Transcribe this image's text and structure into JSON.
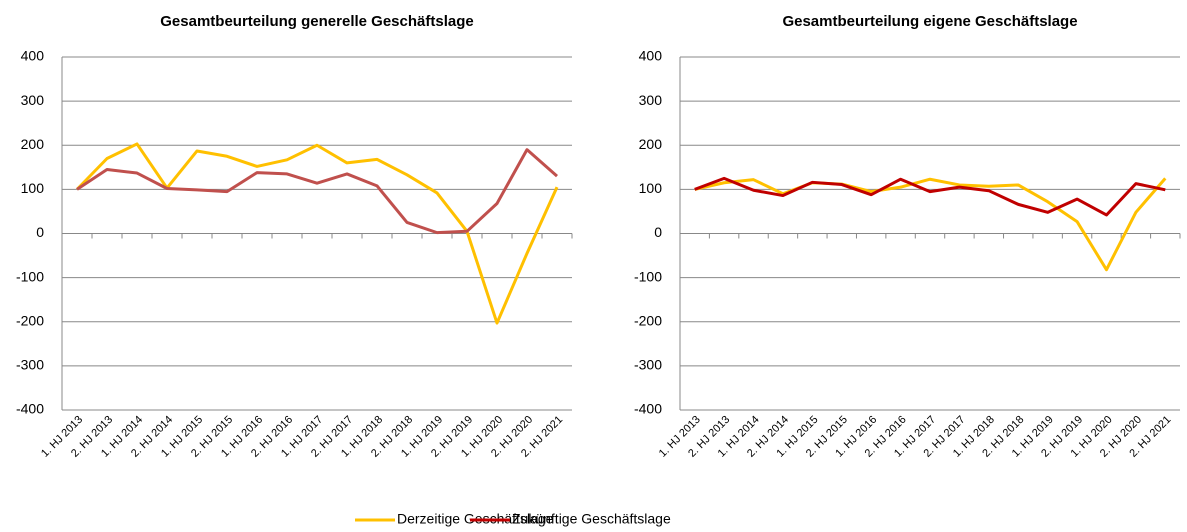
{
  "chart_data": [
    {
      "type": "line",
      "title": "Gesamtbeurteilung generelle Geschäftslage",
      "categories": [
        "1. HJ 2013",
        "2. HJ 2013",
        "1. HJ 2014",
        "2. HJ 2014",
        "1. HJ 2015",
        "2. HJ 2015",
        "1. HJ 2016",
        "2. HJ 2016",
        "1. HJ 2017",
        "2. HJ 2017",
        "1. HJ 2018",
        "2. HJ 2018",
        "1. HJ 2019",
        "2. HJ 2019",
        "1. HJ 2020",
        "2. HJ 2020",
        "2. HJ 2021"
      ],
      "series": [
        {
          "color": "#ffc000",
          "values": [
            100,
            170,
            203,
            103,
            187,
            175,
            152,
            167,
            200,
            160,
            168,
            133,
            92,
            5,
            -203,
            -45,
            105
          ]
        },
        {
          "color": "#c0504d",
          "values": [
            100,
            145,
            137,
            102,
            99,
            95,
            138,
            135,
            114,
            135,
            108,
            25,
            2,
            5,
            68,
            190,
            130
          ]
        }
      ],
      "ylim": [
        -400,
        400
      ],
      "yticks": [
        -400,
        -300,
        -200,
        -100,
        0,
        100,
        200,
        300,
        400
      ],
      "grid": true
    },
    {
      "type": "line",
      "title": "Gesamtbeurteilung eigene Geschäftslage",
      "categories": [
        "1. HJ 2013",
        "2. HJ 2013",
        "1. HJ 2014",
        "2. HJ 2014",
        "1. HJ 2015",
        "2. HJ 2015",
        "1. HJ 2016",
        "2. HJ 2016",
        "1. HJ 2017",
        "2. HJ 2017",
        "1. HJ 2018",
        "2. HJ 2018",
        "1. HJ 2019",
        "2. HJ 2019",
        "1. HJ 2020",
        "2. HJ 2020",
        "2. HJ 2021"
      ],
      "series": [
        {
          "name": "Derzeitige Geschäftslage",
          "color": "#ffc000",
          "values": [
            100,
            115,
            122,
            90,
            115,
            112,
            95,
            105,
            123,
            110,
            107,
            110,
            72,
            27,
            -82,
            48,
            125
          ]
        },
        {
          "name": "Zukünftige Geschäftslage",
          "color": "#c00000",
          "values": [
            100,
            125,
            98,
            86,
            116,
            111,
            88,
            123,
            95,
            105,
            97,
            66,
            48,
            78,
            42,
            113,
            99
          ]
        }
      ],
      "ylim": [
        -400,
        400
      ],
      "yticks": [
        -400,
        -300,
        -200,
        -100,
        0,
        100,
        200,
        300,
        400
      ],
      "grid": true
    }
  ]
}
